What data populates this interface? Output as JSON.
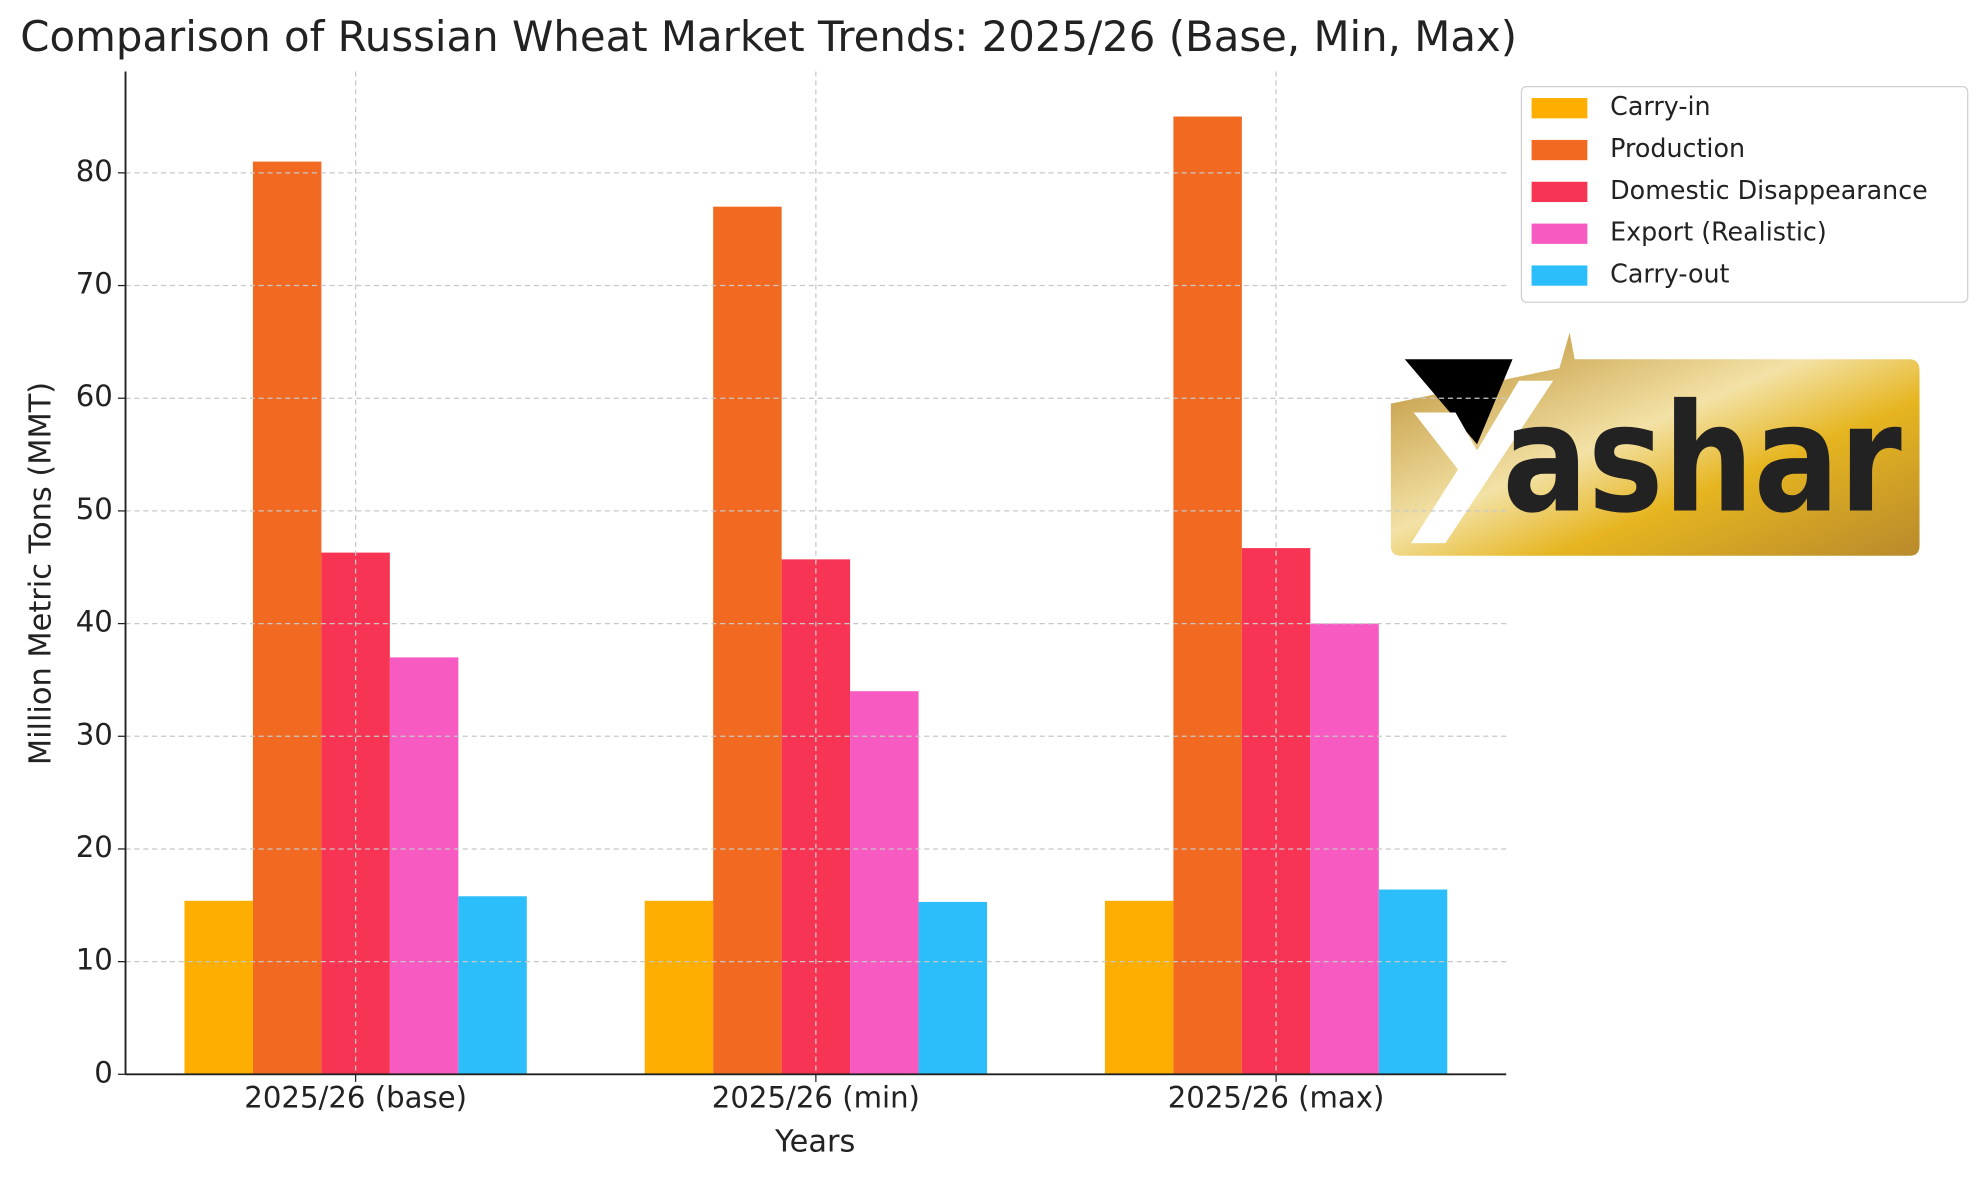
{
  "chart_data": {
    "type": "bar",
    "title": "Comparison of Russian Wheat Market Trends: 2025/26 (Base, Min, Max)",
    "x_label": "Years",
    "y_label": "Million Metric Tons (MMT)",
    "categories": [
      "2025/26 (base)",
      "2025/26 (min)",
      "2025/26 (max)"
    ],
    "series": [
      {
        "name": "Carry-in",
        "color": "#fdae00",
        "values": [
          15.4,
          15.4,
          15.4
        ]
      },
      {
        "name": "Production",
        "color": "#f26a22",
        "values": [
          81,
          77,
          85
        ]
      },
      {
        "name": "Domestic Disappearance",
        "color": "#f73453",
        "values": [
          46.3,
          45.7,
          46.7
        ]
      },
      {
        "name": "Export (Realistic)",
        "color": "#f75ac0",
        "values": [
          37,
          34,
          40
        ]
      },
      {
        "name": "Carry-out",
        "color": "#2bbefa",
        "values": [
          15.8,
          15.3,
          16.4
        ]
      }
    ],
    "ylim": [
      0,
      89
    ],
    "yticks": [
      0,
      10,
      20,
      30,
      40,
      50,
      60,
      70,
      80
    ],
    "grid": true,
    "legend": "upper right",
    "logo_text": "ashar"
  }
}
